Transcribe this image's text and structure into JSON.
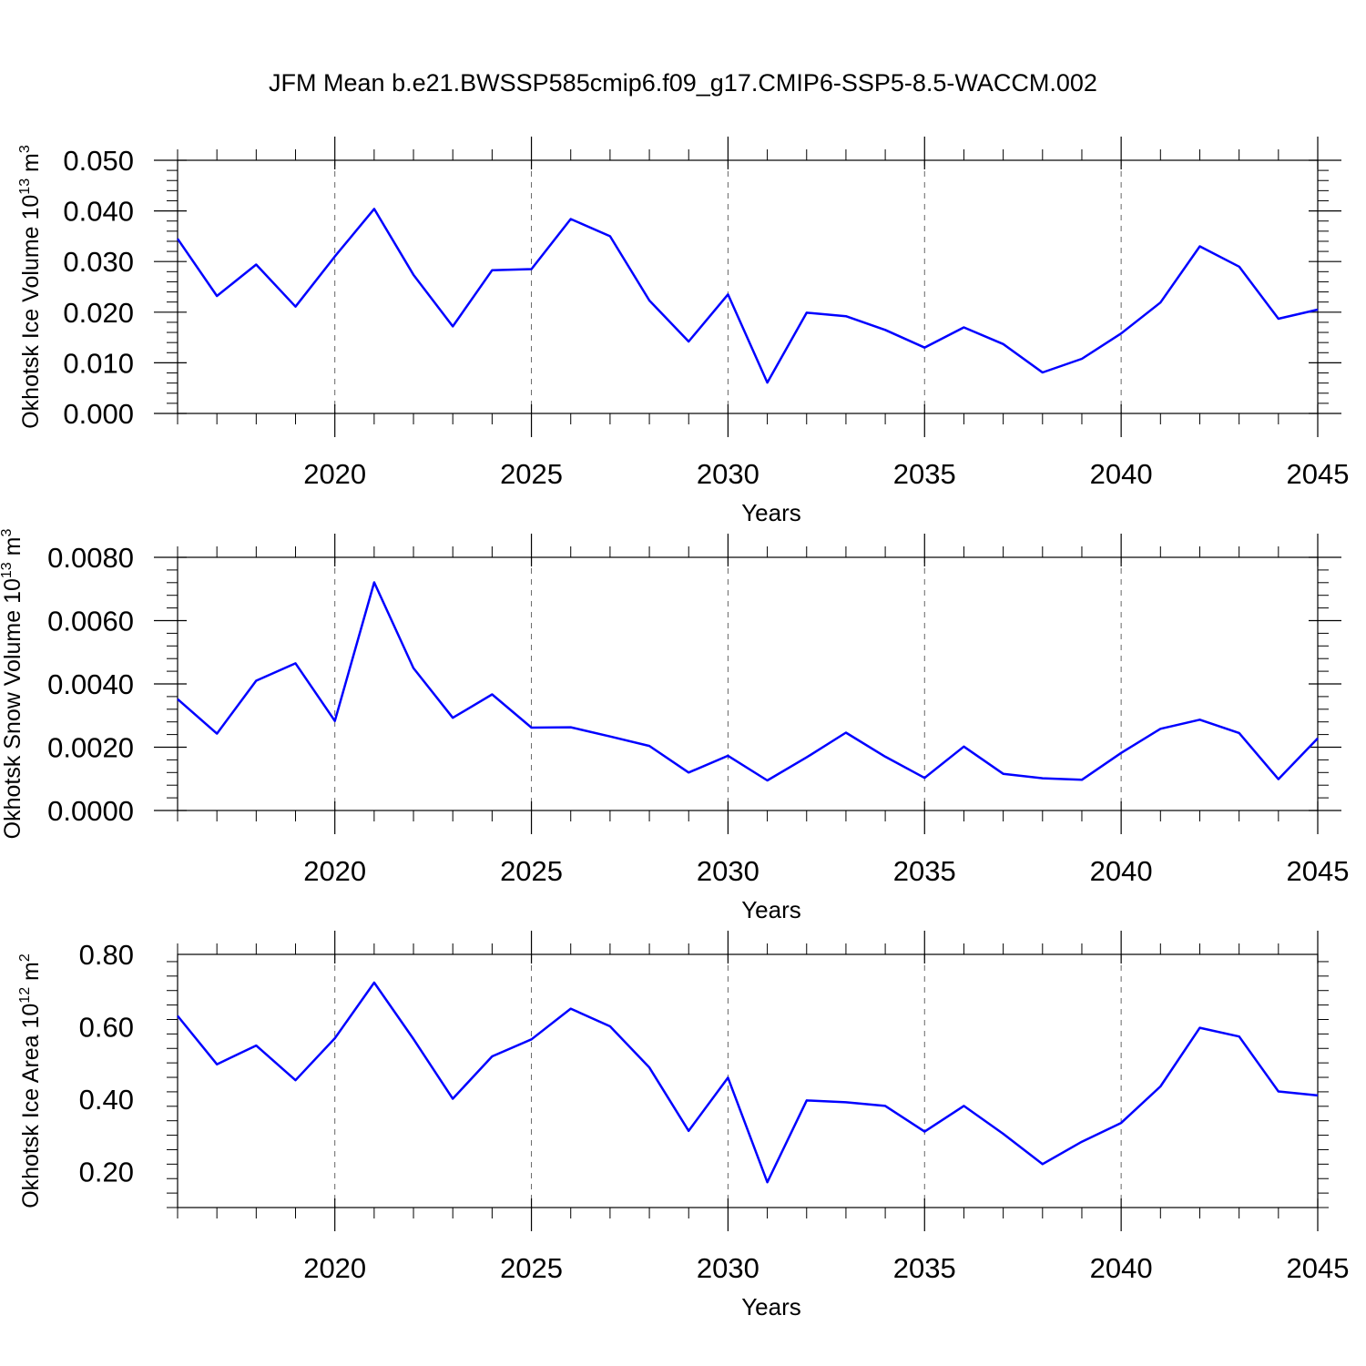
{
  "title": "JFM Mean b.e21.BWSSP585cmip6.f09_g17.CMIP6-SSP5-8.5-WACCM.002",
  "colors": {
    "line": "#0000ff",
    "axis": "#000000",
    "grid": "#666666"
  },
  "chart_data": [
    {
      "type": "line",
      "xlabel": "Years",
      "ylabel": {
        "text": "Okhotsk Ice Volume 10",
        "exp": "13",
        "unit": " m",
        "unit_exp": "3"
      },
      "xlim": [
        2016,
        2045
      ],
      "ylim": [
        0,
        0.05
      ],
      "xticks": [
        "2020",
        "2025",
        "2030",
        "2035",
        "2040",
        "2045"
      ],
      "yticks": [
        "0.000",
        "0.010",
        "0.020",
        "0.030",
        "0.040",
        "0.050"
      ],
      "grid": "vertical dashed at major x ticks",
      "x": [
        2016,
        2017,
        2018,
        2019,
        2020,
        2021,
        2022,
        2023,
        2024,
        2025,
        2026,
        2027,
        2028,
        2029,
        2030,
        2031,
        2032,
        2033,
        2034,
        2035,
        2036,
        2037,
        2038,
        2039,
        2040,
        2041,
        2042,
        2043,
        2044,
        2045
      ],
      "series": [
        {
          "values": [
            0.0345,
            0.0232,
            0.0294,
            0.0211,
            0.031,
            0.0404,
            0.0274,
            0.0172,
            0.0283,
            0.0285,
            0.0384,
            0.035,
            0.0223,
            0.0142,
            0.0235,
            0.0061,
            0.0199,
            0.0192,
            0.0165,
            0.013,
            0.017,
            0.0137,
            0.0081,
            0.0108,
            0.0158,
            0.0219,
            0.033,
            0.029,
            0.0187,
            0.0205
          ]
        }
      ]
    },
    {
      "type": "line",
      "xlabel": "Years",
      "ylabel": {
        "text": "Okhotsk Snow Volume 10",
        "exp": "13",
        "unit": " m",
        "unit_exp": "3"
      },
      "xlim": [
        2016,
        2045
      ],
      "ylim": [
        0,
        0.008
      ],
      "xticks": [
        "2020",
        "2025",
        "2030",
        "2035",
        "2040",
        "2045"
      ],
      "yticks": [
        "0.0000",
        "0.0020",
        "0.0040",
        "0.0060",
        "0.0080"
      ],
      "grid": "vertical dashed at major x ticks",
      "x": [
        2016,
        2017,
        2018,
        2019,
        2020,
        2021,
        2022,
        2023,
        2024,
        2025,
        2026,
        2027,
        2028,
        2029,
        2030,
        2031,
        2032,
        2033,
        2034,
        2035,
        2036,
        2037,
        2038,
        2039,
        2040,
        2041,
        2042,
        2043,
        2044,
        2045
      ],
      "series": [
        {
          "values": [
            0.00352,
            0.00243,
            0.0041,
            0.00465,
            0.00283,
            0.00721,
            0.0045,
            0.00293,
            0.00367,
            0.00262,
            0.00263,
            0.00234,
            0.00204,
            0.0012,
            0.00173,
            0.00095,
            0.00168,
            0.00246,
            0.0017,
            0.00103,
            0.00202,
            0.00116,
            0.00102,
            0.00097,
            0.00182,
            0.00258,
            0.00287,
            0.00245,
            0.00099,
            0.00228
          ]
        }
      ]
    },
    {
      "type": "line",
      "xlabel": "Years",
      "ylabel": {
        "text": "Okhotsk Ice Area 10",
        "exp": "12",
        "unit": " m",
        "unit_exp": "2"
      },
      "xlim": [
        2016,
        2045
      ],
      "ylim": [
        0.1,
        0.8
      ],
      "xticks": [
        "2020",
        "2025",
        "2030",
        "2035",
        "2040",
        "2045"
      ],
      "yticks": [
        "0.20",
        "0.40",
        "0.60",
        "0.80"
      ],
      "grid": "vertical dashed at major x ticks",
      "x": [
        2016,
        2017,
        2018,
        2019,
        2020,
        2021,
        2022,
        2023,
        2024,
        2025,
        2026,
        2027,
        2028,
        2029,
        2030,
        2031,
        2032,
        2033,
        2034,
        2035,
        2036,
        2037,
        2038,
        2039,
        2040,
        2041,
        2042,
        2043,
        2044,
        2045
      ],
      "series": [
        {
          "values": [
            0.63,
            0.496,
            0.548,
            0.452,
            0.568,
            0.722,
            0.566,
            0.401,
            0.518,
            0.565,
            0.65,
            0.601,
            0.487,
            0.312,
            0.459,
            0.17,
            0.396,
            0.391,
            0.381,
            0.31,
            0.381,
            0.304,
            0.22,
            0.282,
            0.334,
            0.435,
            0.597,
            0.573,
            0.421,
            0.41
          ]
        }
      ]
    }
  ]
}
